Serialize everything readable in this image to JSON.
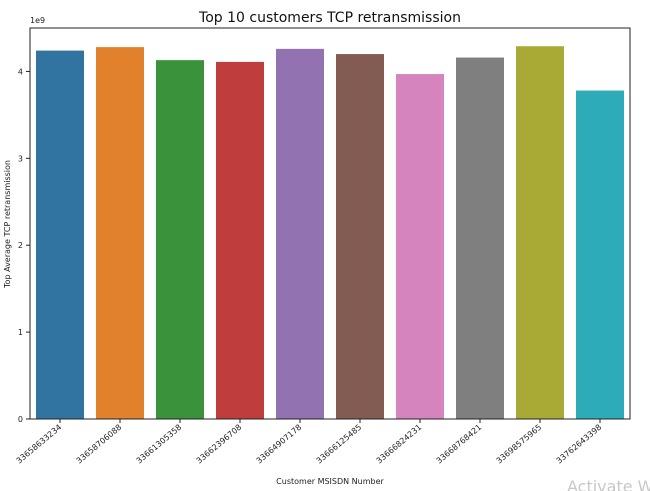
{
  "chart_data": {
    "type": "bar",
    "title": "Top 10 customers TCP retransmission",
    "xlabel": "Customer MSISDN Number",
    "ylabel": "Top Average TCP retransmission",
    "y_offset_label": "1e9",
    "ylim": [
      0,
      4.5
    ],
    "yticks": [
      0,
      1,
      2,
      3,
      4
    ],
    "categories": [
      "33658633234",
      "33658706088",
      "33661305358",
      "33662396708",
      "33664907178",
      "33666125485",
      "33666824231",
      "33668768421",
      "33698575965",
      "33762643398"
    ],
    "values": [
      4.24,
      4.28,
      4.13,
      4.11,
      4.26,
      4.2,
      3.97,
      4.16,
      4.29,
      3.78
    ],
    "colors": [
      "#3274a1",
      "#e1812c",
      "#3a923a",
      "#c03d3e",
      "#9372b2",
      "#845b53",
      "#d684bd",
      "#7f7f7f",
      "#a9aa35",
      "#2eabb8"
    ],
    "grid": false
  },
  "watermark": "Activate W"
}
